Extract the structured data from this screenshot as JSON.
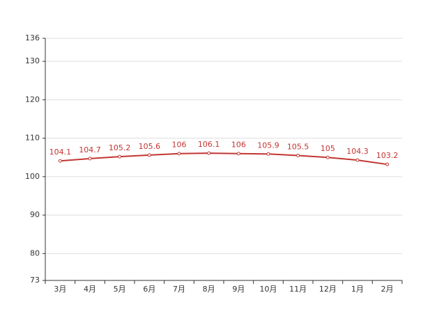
{
  "chart_data": {
    "type": "line",
    "categories": [
      "3月",
      "4月",
      "5月",
      "6月",
      "7月",
      "8月",
      "9月",
      "10月",
      "11月",
      "12月",
      "1月",
      "2月"
    ],
    "values": [
      104.1,
      104.7,
      105.2,
      105.6,
      106,
      106.1,
      106,
      105.9,
      105.5,
      105,
      104.3,
      103.2
    ],
    "color": "#c23531",
    "ylim": [
      73,
      136
    ],
    "yticks": [
      73,
      80,
      90,
      100,
      110,
      120,
      130,
      136
    ],
    "grid": true
  }
}
